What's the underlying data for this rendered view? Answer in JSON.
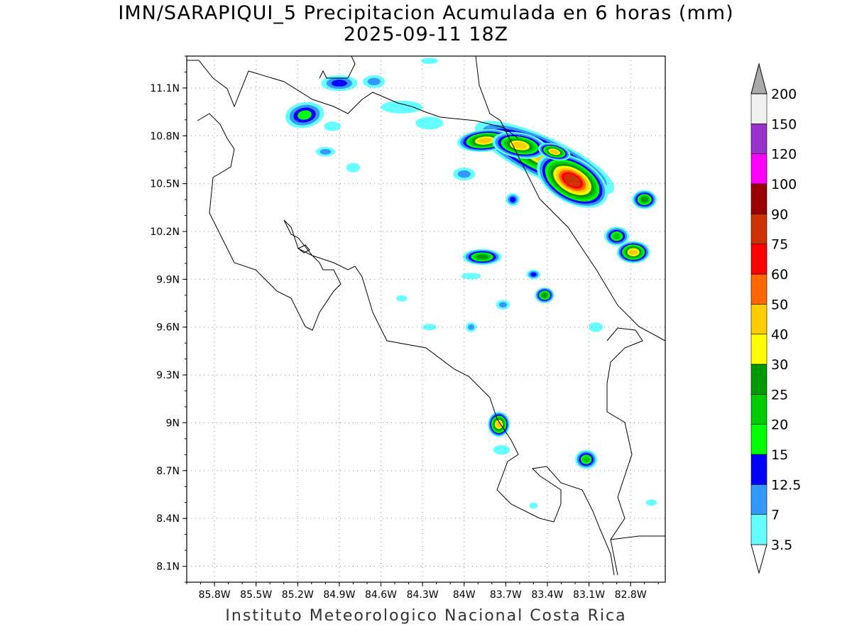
{
  "title": "IMN/SARAPIQUI_5 Precipitacion Acumulada en 6 horas (mm)",
  "subtitle": "2025-09-11 18Z",
  "footer": "Instituto Meteorologico Nacional Costa Rica",
  "map": {
    "lon_range": [
      -86.0,
      -82.55
    ],
    "lat_range": [
      8.0,
      11.3
    ],
    "lon_ticks": [
      {
        "value": -85.8,
        "label": "85.8W"
      },
      {
        "value": -85.5,
        "label": "85.5W"
      },
      {
        "value": -85.2,
        "label": "85.2W"
      },
      {
        "value": -84.9,
        "label": "84.9W"
      },
      {
        "value": -84.6,
        "label": "84.6W"
      },
      {
        "value": -84.3,
        "label": "84.3W"
      },
      {
        "value": -84.0,
        "label": "84W"
      },
      {
        "value": -83.7,
        "label": "83.7W"
      },
      {
        "value": -83.4,
        "label": "83.4W"
      },
      {
        "value": -83.1,
        "label": "83.1W"
      },
      {
        "value": -82.8,
        "label": "82.8W"
      }
    ],
    "lat_ticks": [
      {
        "value": 11.1,
        "label": "11.1N"
      },
      {
        "value": 10.8,
        "label": "10.8N"
      },
      {
        "value": 10.5,
        "label": "10.5N"
      },
      {
        "value": 10.2,
        "label": "10.2N"
      },
      {
        "value": 9.9,
        "label": "9.9N"
      },
      {
        "value": 9.6,
        "label": "9.6N"
      },
      {
        "value": 9.3,
        "label": "9.3N"
      },
      {
        "value": 9.0,
        "label": "9N"
      },
      {
        "value": 8.7,
        "label": "8.7N"
      },
      {
        "value": 8.4,
        "label": "8.4N"
      },
      {
        "value": 8.1,
        "label": "8.1N"
      }
    ],
    "grid": true
  },
  "colorbar": {
    "levels": [
      {
        "label": "3.5",
        "color": "#66ffff"
      },
      {
        "label": "7",
        "color": "#3399ff"
      },
      {
        "label": "12.5",
        "color": "#0000ff"
      },
      {
        "label": "15",
        "color": "#00ff00"
      },
      {
        "label": "20",
        "color": "#00cc00"
      },
      {
        "label": "25",
        "color": "#009900"
      },
      {
        "label": "30",
        "color": "#ffff00"
      },
      {
        "label": "40",
        "color": "#ffcc00"
      },
      {
        "label": "50",
        "color": "#ff6600"
      },
      {
        "label": "60",
        "color": "#ff0000"
      },
      {
        "label": "75",
        "color": "#cc3300"
      },
      {
        "label": "90",
        "color": "#990000"
      },
      {
        "label": "100",
        "color": "#ff00ff"
      },
      {
        "label": "120",
        "color": "#9933cc"
      },
      {
        "label": "150",
        "color": "#f0f0f0"
      },
      {
        "label": "200",
        "color": "#aaaaaa"
      }
    ]
  },
  "precip_cells": [
    {
      "lon": -83.42,
      "lat": 10.66,
      "rx": 0.55,
      "ry": 0.13,
      "rot": 25,
      "max": 40
    },
    {
      "lon": -83.22,
      "lat": 10.52,
      "rx": 0.28,
      "ry": 0.14,
      "rot": 30,
      "max": 75
    },
    {
      "lon": -83.85,
      "lat": 10.77,
      "rx": 0.2,
      "ry": 0.07,
      "rot": -5,
      "max": 40
    },
    {
      "lon": -83.6,
      "lat": 10.74,
      "rx": 0.2,
      "ry": 0.08,
      "rot": 10,
      "max": 40
    },
    {
      "lon": -83.35,
      "lat": 10.7,
      "rx": 0.12,
      "ry": 0.05,
      "rot": 15,
      "max": 40
    },
    {
      "lon": -82.78,
      "lat": 10.07,
      "rx": 0.12,
      "ry": 0.07,
      "rot": 0,
      "max": 40
    },
    {
      "lon": -82.9,
      "lat": 10.17,
      "rx": 0.09,
      "ry": 0.06,
      "rot": 0,
      "max": 20
    },
    {
      "lon": -82.7,
      "lat": 10.4,
      "rx": 0.09,
      "ry": 0.06,
      "rot": 0,
      "max": 25
    },
    {
      "lon": -83.75,
      "lat": 8.99,
      "rx": 0.08,
      "ry": 0.08,
      "rot": 0,
      "max": 40
    },
    {
      "lon": -83.87,
      "lat": 10.04,
      "rx": 0.14,
      "ry": 0.05,
      "rot": 0,
      "max": 25
    },
    {
      "lon": -83.42,
      "lat": 9.8,
      "rx": 0.07,
      "ry": 0.05,
      "rot": 0,
      "max": 25
    },
    {
      "lon": -83.12,
      "lat": 8.77,
      "rx": 0.08,
      "ry": 0.06,
      "rot": 0,
      "max": 20
    },
    {
      "lon": -85.15,
      "lat": 10.93,
      "rx": 0.14,
      "ry": 0.08,
      "rot": -10,
      "max": 15
    },
    {
      "lon": -84.9,
      "lat": 11.13,
      "rx": 0.13,
      "ry": 0.05,
      "rot": 0,
      "max": 12.5
    },
    {
      "lon": -84.0,
      "lat": 10.56,
      "rx": 0.08,
      "ry": 0.04,
      "rot": 0,
      "max": 7
    },
    {
      "lon": -83.65,
      "lat": 10.4,
      "rx": 0.05,
      "ry": 0.04,
      "rot": 0,
      "max": 12.5
    },
    {
      "lon": -83.5,
      "lat": 9.93,
      "rx": 0.05,
      "ry": 0.03,
      "rot": 0,
      "max": 12.5
    },
    {
      "lon": -83.95,
      "lat": 9.6,
      "rx": 0.04,
      "ry": 0.03,
      "rot": 0,
      "max": 7
    },
    {
      "lon": -83.72,
      "lat": 9.74,
      "rx": 0.05,
      "ry": 0.03,
      "rot": 0,
      "max": 7
    },
    {
      "lon": -85.0,
      "lat": 10.7,
      "rx": 0.07,
      "ry": 0.03,
      "rot": 0,
      "max": 7
    },
    {
      "lon": -84.65,
      "lat": 11.14,
      "rx": 0.08,
      "ry": 0.04,
      "rot": 0,
      "max": 7
    },
    {
      "lon": -84.45,
      "lat": 10.98,
      "rx": 0.15,
      "ry": 0.04,
      "rot": 0,
      "max": 3.5
    },
    {
      "lon": -84.25,
      "lat": 10.88,
      "rx": 0.1,
      "ry": 0.04,
      "rot": 0,
      "max": 3.5
    },
    {
      "lon": -84.95,
      "lat": 10.86,
      "rx": 0.06,
      "ry": 0.03,
      "rot": 0,
      "max": 3.5
    },
    {
      "lon": -84.8,
      "lat": 10.6,
      "rx": 0.05,
      "ry": 0.03,
      "rot": 0,
      "max": 3.5
    },
    {
      "lon": -83.73,
      "lat": 8.83,
      "rx": 0.06,
      "ry": 0.03,
      "rot": 0,
      "max": 3.5
    },
    {
      "lon": -83.05,
      "lat": 9.6,
      "rx": 0.05,
      "ry": 0.03,
      "rot": 0,
      "max": 3.5
    },
    {
      "lon": -82.65,
      "lat": 8.5,
      "rx": 0.04,
      "ry": 0.02,
      "rot": 0,
      "max": 3.5
    },
    {
      "lon": -84.25,
      "lat": 9.6,
      "rx": 0.05,
      "ry": 0.02,
      "rot": 0,
      "max": 3.5
    },
    {
      "lon": -84.45,
      "lat": 9.78,
      "rx": 0.04,
      "ry": 0.02,
      "rot": 0,
      "max": 3.5
    },
    {
      "lon": -83.95,
      "lat": 9.92,
      "rx": 0.07,
      "ry": 0.02,
      "rot": 0,
      "max": 3.5
    },
    {
      "lon": -83.5,
      "lat": 8.48,
      "rx": 0.03,
      "ry": 0.02,
      "rot": 0,
      "max": 3.5
    },
    {
      "lon": -84.25,
      "lat": 11.27,
      "rx": 0.06,
      "ry": 0.02,
      "rot": 0,
      "max": 3.5
    }
  ]
}
